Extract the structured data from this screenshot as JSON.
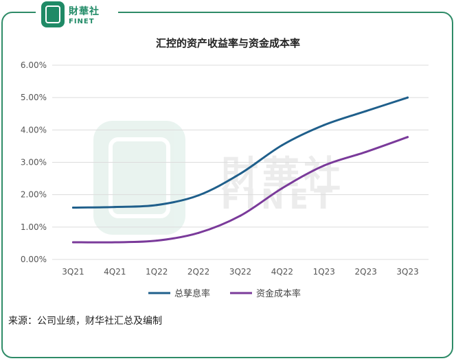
{
  "logo": {
    "cn": "財華社",
    "en": "FINET"
  },
  "watermark": {
    "cn": "財華社",
    "en": "FINET"
  },
  "source_note": "来源：公司业绩，财华社汇总及编制",
  "colors": {
    "frame": "#2e8b67",
    "series1": "#1f5f8b",
    "series2": "#7a3a9a"
  },
  "chart_data": {
    "type": "line",
    "title": "汇控的资产收益率与资金成本率",
    "xlabel": "",
    "ylabel": "",
    "categories": [
      "3Q21",
      "4Q21",
      "1Q22",
      "2Q22",
      "3Q22",
      "4Q22",
      "1Q23",
      "2Q23",
      "3Q23"
    ],
    "y_ticks": [
      "0.00%",
      "1.00%",
      "2.00%",
      "3.00%",
      "4.00%",
      "5.00%",
      "6.00%"
    ],
    "ylim": [
      0,
      6
    ],
    "grid": true,
    "legend_position": "bottom",
    "series": [
      {
        "name": "总孳息率",
        "color": "#1f5f8b",
        "values": [
          1.6,
          1.62,
          1.68,
          1.98,
          2.65,
          3.53,
          4.15,
          4.58,
          5.0
        ]
      },
      {
        "name": "资金成本率",
        "color": "#7a3a9a",
        "values": [
          0.53,
          0.53,
          0.58,
          0.82,
          1.35,
          2.2,
          2.9,
          3.32,
          3.78
        ]
      }
    ]
  }
}
